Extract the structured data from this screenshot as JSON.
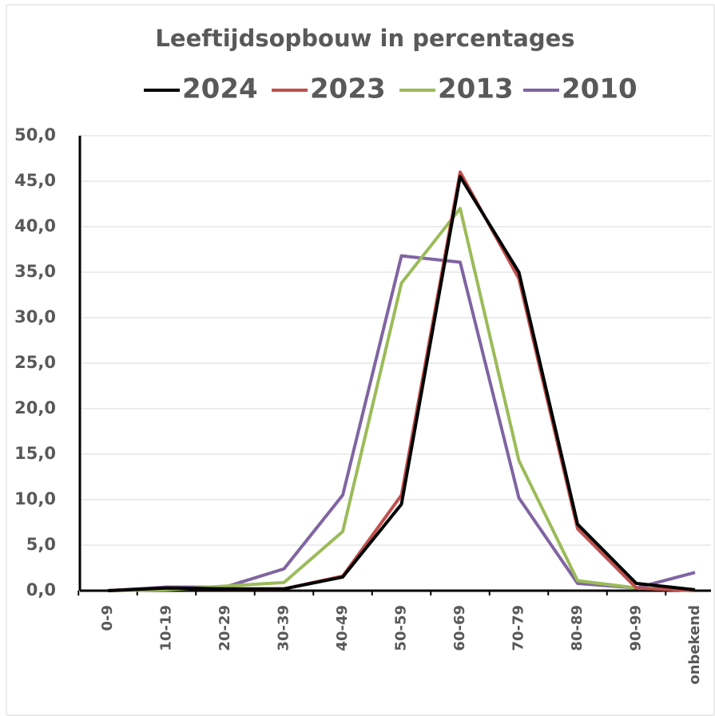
{
  "chart_data": {
    "type": "line",
    "title": "Leeftijdsopbouw in percentages",
    "categories": [
      "0-9",
      "10-19",
      "20-29",
      "30-39",
      "40-49",
      "50-59",
      "60-69",
      "70-79",
      "80-89",
      "90-99",
      "onbekend"
    ],
    "series": [
      {
        "name": "2024",
        "color": "#000000",
        "values": [
          0,
          0.3,
          0.2,
          0.2,
          1.5,
          9.5,
          45.5,
          35,
          7.3,
          0.8,
          0.1
        ]
      },
      {
        "name": "2023",
        "color": "#c0504d",
        "values": [
          0,
          0.3,
          0.2,
          0.2,
          1.6,
          10.5,
          46,
          34.3,
          6.8,
          0.3,
          0
        ]
      },
      {
        "name": "2013",
        "color": "#9bbb59",
        "values": [
          0,
          0.1,
          0.5,
          0.9,
          6.5,
          33.8,
          42,
          14.3,
          1.1,
          0.3,
          0
        ]
      },
      {
        "name": "2010",
        "color": "#8064a2",
        "values": [
          0,
          0.4,
          0.4,
          2.4,
          10.5,
          36.8,
          36.1,
          10.2,
          0.8,
          0.3,
          2.0
        ]
      }
    ],
    "ylim": [
      0,
      50
    ],
    "yticks": [
      {
        "value": 0,
        "label": "0,0"
      },
      {
        "value": 5,
        "label": "5,0"
      },
      {
        "value": 10,
        "label": "10,0"
      },
      {
        "value": 15,
        "label": "15,0"
      },
      {
        "value": 20,
        "label": "20,0"
      },
      {
        "value": 25,
        "label": "25,0"
      },
      {
        "value": 30,
        "label": "30,0"
      },
      {
        "value": 35,
        "label": "35,0"
      },
      {
        "value": 40,
        "label": "40,0"
      },
      {
        "value": 45,
        "label": "45,0"
      },
      {
        "value": 50,
        "label": "50,0"
      }
    ],
    "grid": true
  }
}
